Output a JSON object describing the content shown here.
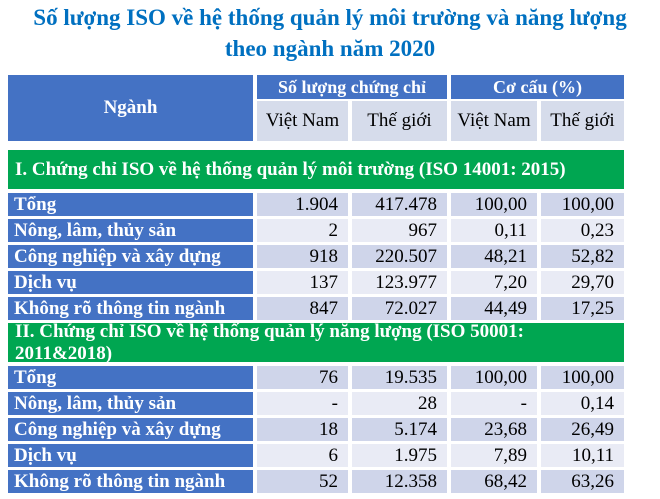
{
  "title": {
    "line1": "Số lượng ISO về hệ thống quản lý môi trường và năng lượng",
    "line2": "theo ngành năm 2020"
  },
  "colors": {
    "title_blue": "#0070C0",
    "header_blue": "#4472C4",
    "section_green": "#00A651",
    "band_dark": "#CFD5EA",
    "band_light": "#E9EBF5",
    "subheader_bg": "#D6DCEB"
  },
  "table": {
    "header": {
      "industry": "Ngành",
      "group1": "Số lượng chứng chỉ",
      "group2": "Cơ cấu (%)",
      "subheaders": [
        "Việt Nam",
        "Thế giới",
        "Việt Nam",
        "Thế giới"
      ]
    },
    "sections": [
      {
        "title": "I. Chứng chỉ ISO về hệ thống quản lý môi trường (ISO 14001: 2015)",
        "rows": [
          {
            "label": "Tổng",
            "values": [
              "1.904",
              "417.478",
              "100,00",
              "100,00"
            ]
          },
          {
            "label": "Nông, lâm, thủy sản",
            "values": [
              "2",
              "967",
              "0,11",
              "0,23"
            ]
          },
          {
            "label": "Công nghiệp và xây dựng",
            "values": [
              "918",
              "220.507",
              "48,21",
              "52,82"
            ]
          },
          {
            "label": "Dịch vụ",
            "values": [
              "137",
              "123.977",
              "7,20",
              "29,70"
            ]
          },
          {
            "label": "Không rõ thông tin ngành",
            "values": [
              "847",
              "72.027",
              "44,49",
              "17,25"
            ]
          }
        ]
      },
      {
        "title": "II. Chứng chỉ ISO về hệ thống quản lý năng lượng (ISO 50001: 2011&2018)",
        "rows": [
          {
            "label": "Tổng",
            "values": [
              "76",
              "19.535",
              "100,00",
              "100,00"
            ]
          },
          {
            "label": "Nông, lâm, thủy sản",
            "values": [
              "-",
              "28",
              "-",
              "0,14"
            ]
          },
          {
            "label": "Công nghiệp và xây dựng",
            "values": [
              "18",
              "5.174",
              "23,68",
              "26,49"
            ]
          },
          {
            "label": "Dịch vụ",
            "values": [
              "6",
              "1.975",
              "7,89",
              "10,11"
            ]
          },
          {
            "label": "Không rõ thông tin ngành",
            "values": [
              "52",
              "12.358",
              "68,42",
              "63,26"
            ]
          }
        ]
      }
    ]
  },
  "chart_data": {
    "type": "table",
    "title": "Số lượng ISO về hệ thống quản lý môi trường và năng lượng theo ngành năm 2020",
    "columns": [
      "Ngành",
      "Số lượng chứng chỉ - Việt Nam",
      "Số lượng chứng chỉ - Thế giới",
      "Cơ cấu (%) - Việt Nam",
      "Cơ cấu (%) - Thế giới"
    ],
    "sections": [
      {
        "name": "I. Chứng chỉ ISO về hệ thống quản lý môi trường (ISO 14001: 2015)",
        "rows": [
          [
            "Tổng",
            1904,
            417478,
            100.0,
            100.0
          ],
          [
            "Nông, lâm, thủy sản",
            2,
            967,
            0.11,
            0.23
          ],
          [
            "Công nghiệp và xây dựng",
            918,
            220507,
            48.21,
            52.82
          ],
          [
            "Dịch vụ",
            137,
            123977,
            7.2,
            29.7
          ],
          [
            "Không rõ thông tin ngành",
            847,
            72027,
            44.49,
            17.25
          ]
        ]
      },
      {
        "name": "II. Chứng chỉ ISO về hệ thống quản lý năng lượng (ISO 50001: 2011&2018)",
        "rows": [
          [
            "Tổng",
            76,
            19535,
            100.0,
            100.0
          ],
          [
            "Nông, lâm, thủy sản",
            null,
            28,
            null,
            0.14
          ],
          [
            "Công nghiệp và xây dựng",
            18,
            5174,
            23.68,
            26.49
          ],
          [
            "Dịch vụ",
            6,
            1975,
            7.89,
            10.11
          ],
          [
            "Không rõ thông tin ngành",
            52,
            12358,
            68.42,
            63.26
          ]
        ]
      }
    ]
  }
}
